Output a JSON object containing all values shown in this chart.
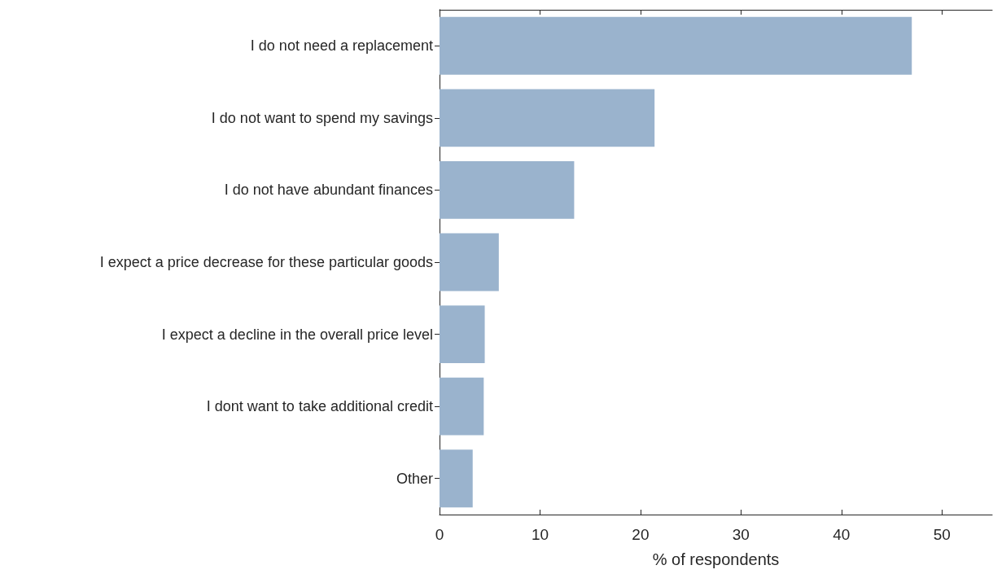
{
  "chart_data": {
    "type": "bar",
    "orientation": "horizontal",
    "xlabel": "% of respondents",
    "categories": [
      "I do not need a replacement",
      "I do not want to spend my savings",
      "I do not have abundant finances",
      "I expect a price decrease for these particular goods",
      "I expect a decline in the overall price level",
      "I dont want to take additional credit",
      "Other"
    ],
    "values": [
      47.0,
      21.4,
      13.4,
      5.9,
      4.5,
      4.4,
      3.3
    ],
    "color": "#9ab3cd",
    "xlim": [
      0,
      55
    ],
    "xticks": [
      0,
      10,
      20,
      30,
      40,
      50
    ],
    "grid": false
  }
}
